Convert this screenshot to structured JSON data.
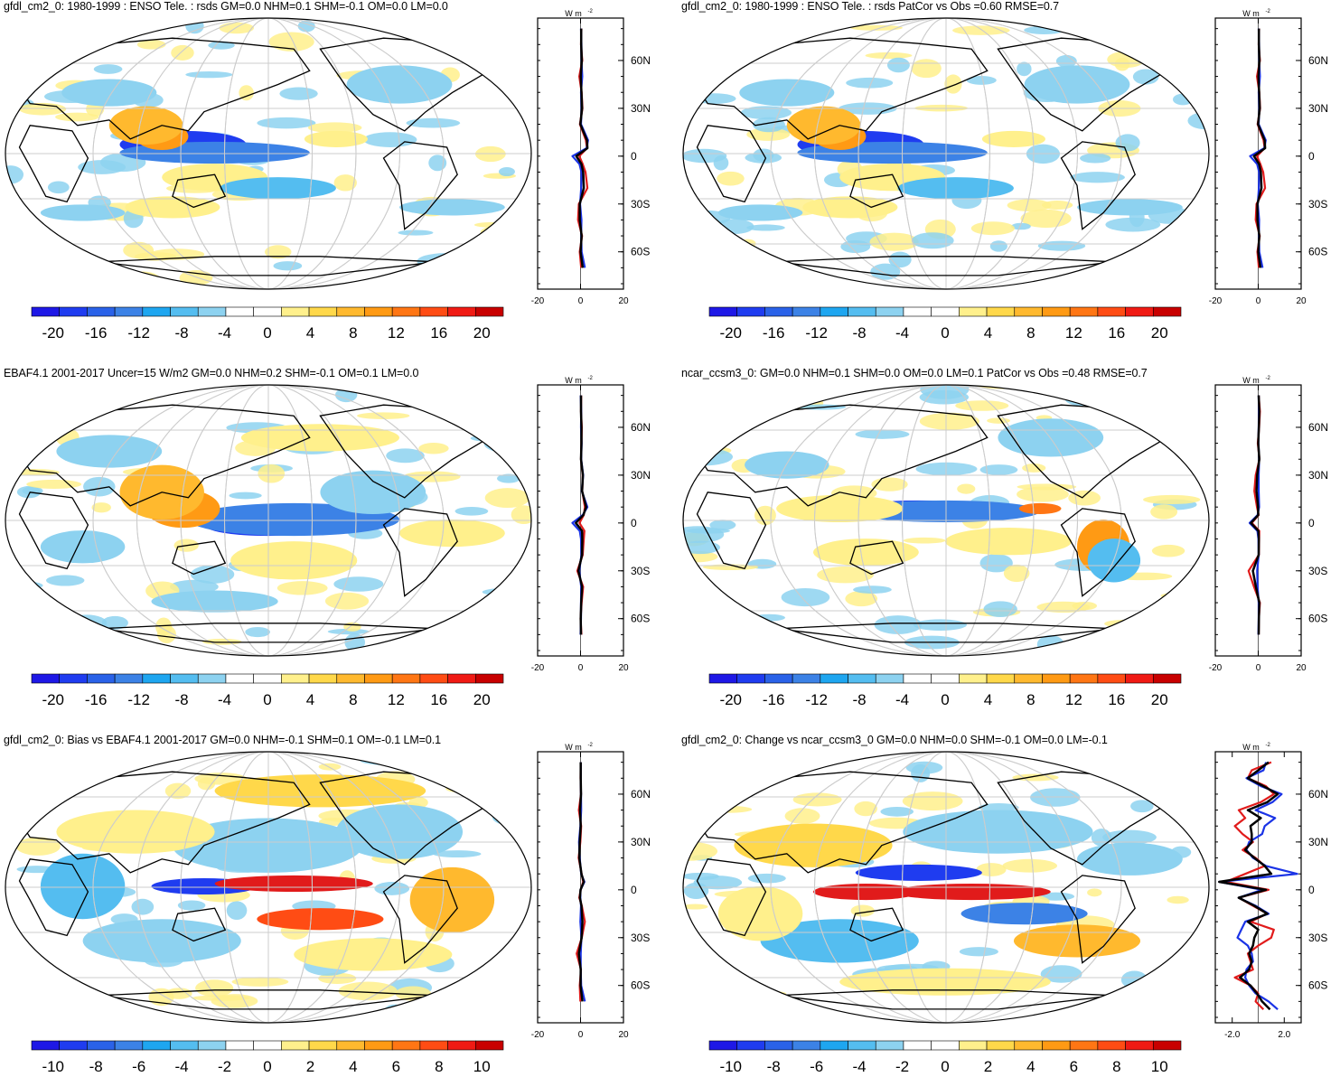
{
  "colors": {
    "ocean": "#ffffff",
    "land_outline": "#000000",
    "grid": "#cccccc",
    "legend_scale_20": [
      "#1e18e6",
      "#1f3cf0",
      "#2a62e8",
      "#3c82e6",
      "#1ea6f0",
      "#54bdf0",
      "#8dd2f0",
      "#ffffff",
      "#ffffff",
      "#fff08c",
      "#ffd84a",
      "#ffb92e",
      "#ff9a14",
      "#ff7614",
      "#ff4c14",
      "#f01a14",
      "#c80000"
    ],
    "zonal_series": [
      "#e11b1b",
      "#1a33e6",
      "#000000"
    ]
  },
  "chart_data": [
    {
      "type": "heatmap",
      "title": "gfdl_cm2_0: 1980-1999 : ENSO Tele. : rsds GM=0.0 NHM=0.1 SHM=-0.1 OM=0.0 LM=0.0",
      "projection": "Robinson",
      "colorbar": {
        "min": -22,
        "max": 22,
        "ticks": [
          "-20",
          "-16",
          "-12",
          "-8",
          "-4",
          "0",
          "4",
          "8",
          "12",
          "16",
          "20"
        ]
      },
      "zonal_mean": {
        "units": "W m",
        "units_sup": "-2",
        "xlim": [
          -20,
          20
        ],
        "xticks": [
          "-20",
          "0",
          "20"
        ],
        "ylabels": [
          "60N",
          "30N",
          "0",
          "30S",
          "60S"
        ],
        "lat": [
          80,
          70,
          60,
          50,
          40,
          30,
          20,
          10,
          5,
          0,
          -5,
          -10,
          -20,
          -30,
          -40,
          -50,
          -60,
          -70
        ],
        "series": [
          {
            "values": [
              0.4,
              0.2,
              0.8,
              -0.6,
              0.5,
              0.9,
              -0.3,
              2.5,
              3.0,
              -0.6,
              1.0,
              2.3,
              3.2,
              -0.8,
              -1.2,
              0.7,
              -0.4,
              0.3
            ]
          },
          {
            "values": [
              0.2,
              0.4,
              0.4,
              0.8,
              0.2,
              0.5,
              0.2,
              3.5,
              2.8,
              -3.8,
              -0.5,
              0.4,
              0.3,
              -0.2,
              0.4,
              0.3,
              0.5,
              2.0
            ]
          },
          {
            "values": [
              0.3,
              0.3,
              0.6,
              0.1,
              0.4,
              0.7,
              -0.1,
              3.0,
              3.2,
              -2.0,
              0.4,
              1.2,
              1.5,
              -0.4,
              -0.4,
              0.5,
              0.0,
              1.0
            ]
          }
        ]
      }
    },
    {
      "type": "heatmap",
      "title": "gfdl_cm2_0: 1980-1999 : ENSO Tele. : rsds PatCor vs Obs =0.60 RMSE=0.7",
      "projection": "Robinson",
      "colorbar": {
        "min": -22,
        "max": 22,
        "ticks": [
          "-20",
          "-16",
          "-12",
          "-8",
          "-4",
          "0",
          "4",
          "8",
          "12",
          "16",
          "20"
        ]
      },
      "zonal_mean": {
        "units": "W m",
        "units_sup": "-2",
        "xlim": [
          -20,
          20
        ],
        "xticks": [
          "-20",
          "0",
          "20"
        ],
        "ylabels": [
          "60N",
          "30N",
          "0",
          "30S",
          "60S"
        ],
        "lat": [
          80,
          70,
          60,
          50,
          40,
          30,
          20,
          10,
          5,
          0,
          -5,
          -10,
          -20,
          -30,
          -40,
          -50,
          -60,
          -70
        ],
        "series": [
          {
            "values": [
              0.4,
              0.2,
              0.8,
              -0.6,
              0.5,
              0.9,
              -0.3,
              2.5,
              3.0,
              -0.6,
              1.0,
              2.3,
              3.2,
              -0.8,
              -1.2,
              0.7,
              -0.4,
              0.3
            ]
          },
          {
            "values": [
              0.2,
              0.4,
              0.4,
              0.8,
              0.2,
              0.5,
              0.2,
              3.5,
              2.8,
              -3.8,
              -0.5,
              0.4,
              0.3,
              -0.2,
              0.4,
              0.3,
              0.5,
              2.0
            ]
          },
          {
            "values": [
              0.3,
              0.3,
              0.6,
              0.1,
              0.4,
              0.7,
              -0.1,
              3.0,
              3.2,
              -2.0,
              0.4,
              1.2,
              1.5,
              -0.4,
              -0.4,
              0.5,
              0.0,
              1.0
            ]
          }
        ]
      }
    },
    {
      "type": "heatmap",
      "title": "EBAF4.1 2001-2017 Uncer=15 W/m2 GM=0.0 NHM=0.2 SHM=-0.1 OM=0.1 LM=0.0",
      "projection": "Robinson",
      "colorbar": {
        "min": -22,
        "max": 22,
        "ticks": [
          "-20",
          "-16",
          "-12",
          "-8",
          "-4",
          "0",
          "4",
          "8",
          "12",
          "16",
          "20"
        ]
      },
      "zonal_mean": {
        "units": "W m",
        "units_sup": "-2",
        "xlim": [
          -20,
          20
        ],
        "xticks": [
          "-20",
          "0",
          "20"
        ],
        "ylabels": [
          "60N",
          "30N",
          "0",
          "30S",
          "60S"
        ],
        "lat": [
          80,
          70,
          60,
          50,
          40,
          30,
          20,
          10,
          5,
          0,
          -5,
          -10,
          -20,
          -30,
          -40,
          -50,
          -60,
          -70
        ],
        "series": [
          {
            "values": [
              0.3,
              0.2,
              0.6,
              0.4,
              0.2,
              1.0,
              0.8,
              2.0,
              1.5,
              -0.5,
              1.8,
              1.5,
              1.0,
              -1.5,
              1.2,
              0.5,
              0.0,
              0.4
            ]
          },
          {
            "values": [
              0.1,
              0.3,
              0.2,
              0.5,
              0.3,
              1.2,
              0.6,
              3.2,
              1.0,
              -3.8,
              -0.4,
              0.2,
              0.4,
              -0.6,
              0.3,
              0.2,
              0.2,
              0.0
            ]
          },
          {
            "values": [
              0.2,
              0.2,
              0.4,
              0.4,
              0.2,
              1.1,
              0.7,
              2.6,
              1.3,
              -2.2,
              0.7,
              0.8,
              0.7,
              -1.0,
              0.7,
              0.3,
              0.1,
              0.2
            ]
          }
        ]
      }
    },
    {
      "type": "heatmap",
      "title": "ncar_ccsm3_0: GM=0.0 NHM=0.1 SHM=0.0 OM=0.0 LM=0.1 PatCor vs Obs =0.48 RMSE=0.7",
      "projection": "Robinson",
      "colorbar": {
        "min": -22,
        "max": 22,
        "ticks": [
          "-20",
          "-16",
          "-12",
          "-8",
          "-4",
          "0",
          "4",
          "8",
          "12",
          "16",
          "20"
        ]
      },
      "zonal_mean": {
        "units": "W m",
        "units_sup": "-2",
        "xlim": [
          -20,
          20
        ],
        "xticks": [
          "-20",
          "0",
          "20"
        ],
        "ylabels": [
          "60N",
          "30N",
          "0",
          "30S",
          "60S"
        ],
        "lat": [
          80,
          70,
          60,
          50,
          40,
          30,
          20,
          10,
          5,
          0,
          -5,
          -10,
          -20,
          -30,
          -40,
          -50,
          -60,
          -70
        ],
        "series": [
          {
            "values": [
              0.2,
              0.8,
              0.4,
              -0.2,
              0.6,
              -1.2,
              -1.8,
              -0.6,
              0.2,
              -3.0,
              0.5,
              0.4,
              0.3,
              -4.5,
              -2.0,
              0.8,
              0.3,
              0.2
            ]
          },
          {
            "values": [
              0.2,
              0.3,
              0.2,
              0.1,
              0.4,
              0.2,
              0.2,
              0.4,
              -0.3,
              -4.0,
              -0.4,
              0.1,
              0.2,
              -0.5,
              -0.3,
              0.2,
              0.2,
              0.1
            ]
          },
          {
            "values": [
              0.2,
              0.5,
              0.3,
              0.0,
              0.5,
              -0.5,
              -0.8,
              -0.1,
              0.0,
              -3.4,
              0.1,
              0.3,
              0.2,
              -2.5,
              -1.1,
              0.5,
              0.3,
              0.2
            ]
          }
        ]
      }
    },
    {
      "type": "heatmap",
      "title": "gfdl_cm2_0: Bias vs EBAF4.1 2001-2017 GM=0.0 NHM=-0.1 SHM=0.1 OM=-0.1 LM=0.1",
      "projection": "Robinson",
      "colorbar": {
        "min": -11,
        "max": 11,
        "ticks": [
          "-10",
          "-8",
          "-6",
          "-4",
          "-2",
          "0",
          "2",
          "4",
          "6",
          "8",
          "10"
        ]
      },
      "zonal_mean": {
        "units": "W m",
        "units_sup": "-2",
        "xlim": [
          -20,
          20
        ],
        "xticks": [
          "-20",
          "0",
          "20"
        ],
        "ylabels": [
          "60N",
          "30N",
          "0",
          "30S",
          "60S"
        ],
        "lat": [
          80,
          70,
          60,
          50,
          40,
          30,
          20,
          10,
          5,
          0,
          -5,
          -10,
          -20,
          -30,
          -40,
          -50,
          -60,
          -70
        ],
        "series": [
          {
            "values": [
              0.1,
              0.0,
              0.2,
              -0.8,
              0.3,
              -0.1,
              -0.9,
              0.5,
              1.2,
              0.1,
              -0.6,
              0.6,
              2.0,
              0.6,
              -1.8,
              0.2,
              -0.4,
              -0.1
            ]
          },
          {
            "values": [
              0.1,
              0.1,
              0.2,
              0.3,
              -0.1,
              -0.7,
              -0.4,
              0.3,
              1.8,
              0.0,
              -0.1,
              0.2,
              -0.1,
              0.4,
              0.1,
              0.1,
              0.3,
              2.0
            ]
          },
          {
            "values": [
              0.1,
              0.1,
              0.2,
              -0.2,
              0.1,
              -0.4,
              -0.6,
              0.4,
              1.5,
              0.0,
              -0.3,
              0.4,
              0.9,
              0.5,
              -0.8,
              0.1,
              0.0,
              0.9
            ]
          }
        ]
      }
    },
    {
      "type": "heatmap",
      "title": "gfdl_cm2_0: Change vs ncar_ccsm3_0 GM=0.0 NHM=0.0 SHM=-0.1 OM=0.0 LM=-0.1",
      "projection": "Robinson",
      "colorbar": {
        "min": -11,
        "max": 11,
        "ticks": [
          "-10",
          "-8",
          "-6",
          "-4",
          "-2",
          "0",
          "2",
          "4",
          "6",
          "8",
          "10"
        ]
      },
      "zonal_mean": {
        "units": "W m",
        "units_sup": "-2",
        "xlim": [
          -3.3,
          3.3
        ],
        "xticks": [
          "-2.0",
          "2.0"
        ],
        "ylabels": [
          "60N",
          "30N",
          "0",
          "30S",
          "60S"
        ],
        "lat": [
          80,
          75,
          70,
          65,
          60,
          55,
          50,
          45,
          40,
          35,
          30,
          25,
          20,
          15,
          10,
          5,
          0,
          -5,
          -10,
          -15,
          -20,
          -25,
          -30,
          -35,
          -40,
          -45,
          -50,
          -55,
          -60,
          -65,
          -70,
          -75
        ],
        "series": [
          {
            "values": [
              1.0,
              -0.5,
              -0.8,
              0.6,
              1.2,
              0.2,
              -1.5,
              -1.0,
              -1.8,
              -1.2,
              -0.4,
              -1.2,
              -0.2,
              0.5,
              -1.0,
              -2.5,
              0.8,
              -1.5,
              -0.4,
              0.7,
              -0.6,
              1.2,
              1.0,
              0.0,
              -0.8,
              -0.6,
              -0.4,
              -1.8,
              -0.6,
              0.0,
              -0.2,
              0.4
            ]
          },
          {
            "values": [
              0.6,
              0.4,
              -0.9,
              0.2,
              1.8,
              1.1,
              -0.2,
              1.3,
              0.5,
              0.3,
              -0.7,
              -0.9,
              -0.4,
              0.6,
              3.0,
              -3.0,
              0.3,
              -1.5,
              -0.2,
              0.8,
              -1.0,
              -1.3,
              -1.6,
              -0.8,
              -0.5,
              -0.4,
              -0.9,
              -1.0,
              -0.7,
              -0.2,
              0.8,
              1.5
            ]
          },
          {
            "values": [
              0.8,
              0.0,
              -0.8,
              0.4,
              1.5,
              0.7,
              -0.8,
              0.2,
              -0.6,
              -0.5,
              -0.5,
              -1.0,
              -0.3,
              0.5,
              1.0,
              -3.0,
              0.6,
              -1.5,
              -0.3,
              0.7,
              -0.8,
              0.0,
              -0.3,
              -0.4,
              -0.7,
              -0.5,
              -0.7,
              -1.4,
              -0.6,
              -0.1,
              0.3,
              0.9
            ]
          }
        ]
      }
    }
  ]
}
